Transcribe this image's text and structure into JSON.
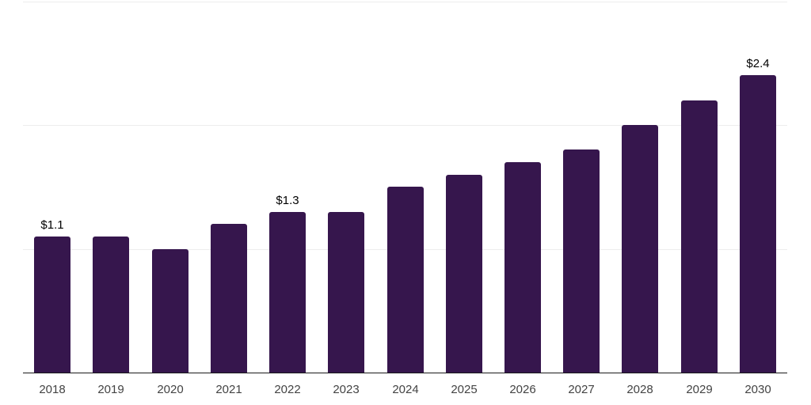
{
  "chart_data": {
    "type": "bar",
    "title": "",
    "xlabel": "",
    "ylabel": "",
    "categories": [
      "2018",
      "2019",
      "2020",
      "2021",
      "2022",
      "2023",
      "2024",
      "2025",
      "2026",
      "2027",
      "2028",
      "2029",
      "2030"
    ],
    "values": [
      1.1,
      1.1,
      1.0,
      1.2,
      1.3,
      1.3,
      1.5,
      1.6,
      1.7,
      1.8,
      2.0,
      2.2,
      2.4
    ],
    "bar_labels": [
      "$1.1",
      "",
      "",
      "",
      "$1.3",
      "",
      "",
      "",
      "",
      "",
      "",
      "",
      "$2.4"
    ],
    "ylim": [
      0,
      3
    ],
    "gridline_values": [
      1,
      2,
      3
    ],
    "grid": true,
    "legend": false,
    "legend_position": "none"
  },
  "colors": {
    "background": "#ffffff",
    "bar": "#36164d",
    "gridline": "#ededed",
    "axis_line": "#1a1a1a",
    "tick_label": "#434343",
    "value_label": "#000000"
  }
}
